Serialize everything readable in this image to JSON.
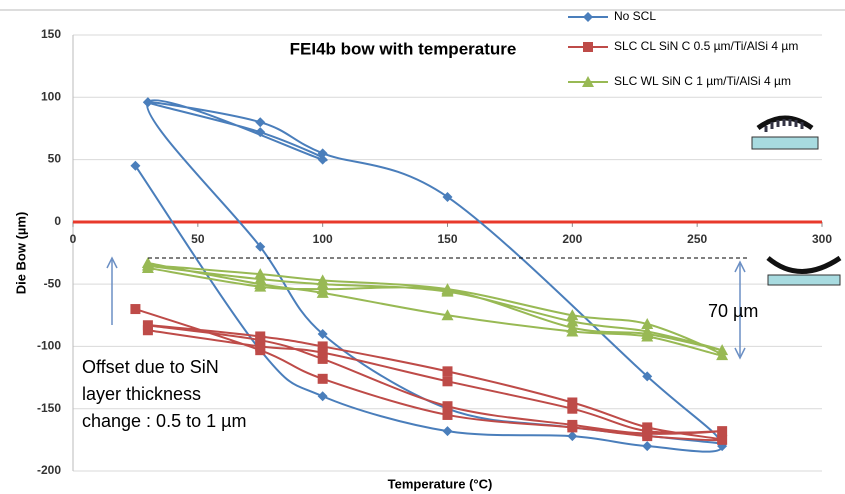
{
  "chart_data": {
    "type": "line",
    "title": "FEI4b bow with temperature",
    "x_label": "Temperature (°C)",
    "y_label": "Die Bow (µm)",
    "xlim": [
      0,
      300
    ],
    "xticks": [
      0,
      50,
      100,
      150,
      200,
      250,
      300
    ],
    "ylim": [
      -200,
      150
    ],
    "yticks": [
      -200,
      -150,
      -100,
      -50,
      0,
      50,
      100,
      150
    ],
    "grid": true,
    "smooth": true,
    "legend": "top-right",
    "annotations": [
      "70 µm",
      "Offset due to SiN",
      "layer thickness",
      "change : 0.5 to 1 µm"
    ],
    "series": [
      {
        "name": "No SCL",
        "color": "#4a7ebb",
        "marker": "diamond",
        "x": [
          25,
          75,
          100,
          150,
          200,
          230,
          260,
          230,
          150,
          100,
          75,
          30,
          75,
          100,
          30,
          75,
          100,
          150,
          200,
          260
        ],
        "values": [
          45,
          -103,
          -140,
          -168,
          -172,
          -180,
          -180,
          -124,
          20,
          55,
          80,
          96,
          72,
          50,
          96,
          -20,
          -90,
          -150,
          -165,
          -178
        ]
      },
      {
        "name": "SLC CL SiN C 0.5 µm/Ti/AlSi 4 µm",
        "color": "#be4b48",
        "marker": "square",
        "x": [
          25,
          75,
          100,
          150,
          200,
          230,
          260,
          230,
          200,
          150,
          100,
          75,
          30,
          75,
          100,
          150,
          200,
          230,
          260,
          230,
          200,
          150,
          100,
          75,
          30
        ],
        "values": [
          -70,
          -103,
          -126,
          -155,
          -165,
          -172,
          -175,
          -165,
          -145,
          -120,
          -100,
          -92,
          -83,
          -95,
          -110,
          -148,
          -163,
          -170,
          -168,
          -168,
          -150,
          -128,
          -105,
          -100,
          -87
        ]
      },
      {
        "name": "SLC  WL SiN C 1 µm/Ti/AlSi 4 µm",
        "color": "#98b954",
        "marker": "triangle",
        "x": [
          30,
          75,
          100,
          150,
          200,
          230,
          260,
          230,
          200,
          150,
          100,
          75,
          30,
          75,
          100,
          150,
          200,
          230,
          260,
          230,
          200,
          150,
          100,
          75,
          30
        ],
        "values": [
          -33,
          -50,
          -57,
          -75,
          -88,
          -92,
          -107,
          -82,
          -75,
          -54,
          -47,
          -42,
          -35,
          -46,
          -50,
          -56,
          -80,
          -88,
          -103,
          -90,
          -85,
          -55,
          -54,
          -52,
          -37
        ]
      }
    ]
  }
}
